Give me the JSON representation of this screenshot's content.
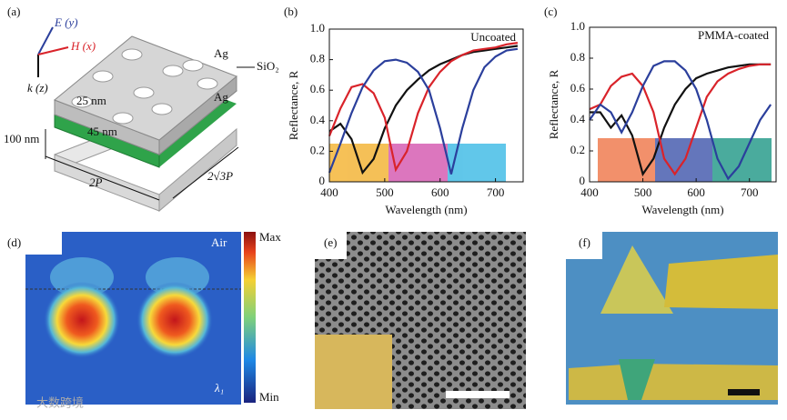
{
  "chart_data": [
    {
      "type": "line",
      "panel": "(b)",
      "annotation": "Uncoated",
      "y_label": "Reflectance, R",
      "x_label": "Wavelength (nm)",
      "x": [
        400,
        420,
        440,
        460,
        480,
        500,
        520,
        540,
        560,
        580,
        600,
        620,
        640,
        660,
        680,
        700,
        720,
        740
      ],
      "series": [
        {
          "color": "#111111",
          "values": [
            0.33,
            0.38,
            0.28,
            0.06,
            0.15,
            0.35,
            0.5,
            0.6,
            0.67,
            0.73,
            0.77,
            0.8,
            0.83,
            0.85,
            0.86,
            0.87,
            0.88,
            0.89
          ]
        },
        {
          "color": "#d9232a",
          "values": [
            0.3,
            0.48,
            0.62,
            0.64,
            0.58,
            0.42,
            0.08,
            0.2,
            0.45,
            0.62,
            0.72,
            0.79,
            0.83,
            0.86,
            0.87,
            0.88,
            0.9,
            0.91
          ]
        },
        {
          "color": "#2b3f9c",
          "values": [
            0.06,
            0.25,
            0.45,
            0.62,
            0.73,
            0.79,
            0.8,
            0.78,
            0.72,
            0.6,
            0.35,
            0.05,
            0.35,
            0.6,
            0.75,
            0.82,
            0.86,
            0.87
          ]
        }
      ],
      "xlim": [
        400,
        750
      ],
      "xticks": [
        400,
        500,
        600,
        700
      ],
      "ylim": [
        0,
        1
      ],
      "yticks": [
        0,
        0.2,
        0.4,
        0.6,
        0.8,
        {
          "value": 1,
          "label": "1.0"
        }
      ]
    },
    {
      "type": "line",
      "panel": "(c)",
      "annotation": "PMMA-coated",
      "y_label": "Reflectance, R",
      "x_label": "Wavelength (nm)",
      "x": [
        400,
        420,
        440,
        460,
        480,
        500,
        520,
        540,
        560,
        580,
        600,
        620,
        640,
        660,
        680,
        700,
        720,
        740
      ],
      "series": [
        {
          "color": "#111111",
          "values": [
            0.45,
            0.45,
            0.35,
            0.43,
            0.3,
            0.05,
            0.15,
            0.35,
            0.5,
            0.6,
            0.67,
            0.7,
            0.72,
            0.74,
            0.75,
            0.76,
            0.76,
            0.76
          ]
        },
        {
          "color": "#d9232a",
          "values": [
            0.47,
            0.5,
            0.62,
            0.68,
            0.7,
            0.62,
            0.45,
            0.15,
            0.05,
            0.15,
            0.35,
            0.55,
            0.65,
            0.7,
            0.73,
            0.75,
            0.76,
            0.76
          ]
        },
        {
          "color": "#2b3f9c",
          "values": [
            0.4,
            0.5,
            0.45,
            0.32,
            0.45,
            0.62,
            0.75,
            0.78,
            0.78,
            0.72,
            0.6,
            0.4,
            0.15,
            0.02,
            0.1,
            0.25,
            0.4,
            0.5
          ]
        }
      ],
      "xlim": [
        400,
        750
      ],
      "xticks": [
        400,
        500,
        600,
        700
      ],
      "ylim": [
        0,
        1
      ],
      "yticks": [
        0,
        0.2,
        0.4,
        0.6,
        0.8,
        {
          "value": 1,
          "label": "1.0"
        }
      ]
    }
  ],
  "schematic": {
    "label": "(a)",
    "e_field": "E (y)",
    "h_field": "H (x)",
    "k": "k (z)",
    "ag_top": "Ag",
    "sio2": "SiO₂",
    "ag_bottom": "Ag",
    "t25": "25 nm",
    "t45": "45 nm",
    "t100": "100 nm",
    "width": "2√3P",
    "length": "2P"
  },
  "field_map": {
    "label": "(d)",
    "medium": "Air",
    "max": "Max",
    "min": "Min",
    "mode": "λ₁"
  },
  "sem": {
    "label": "(e)"
  },
  "photo": {
    "label": "(f)"
  },
  "watermark": "大数跨境"
}
